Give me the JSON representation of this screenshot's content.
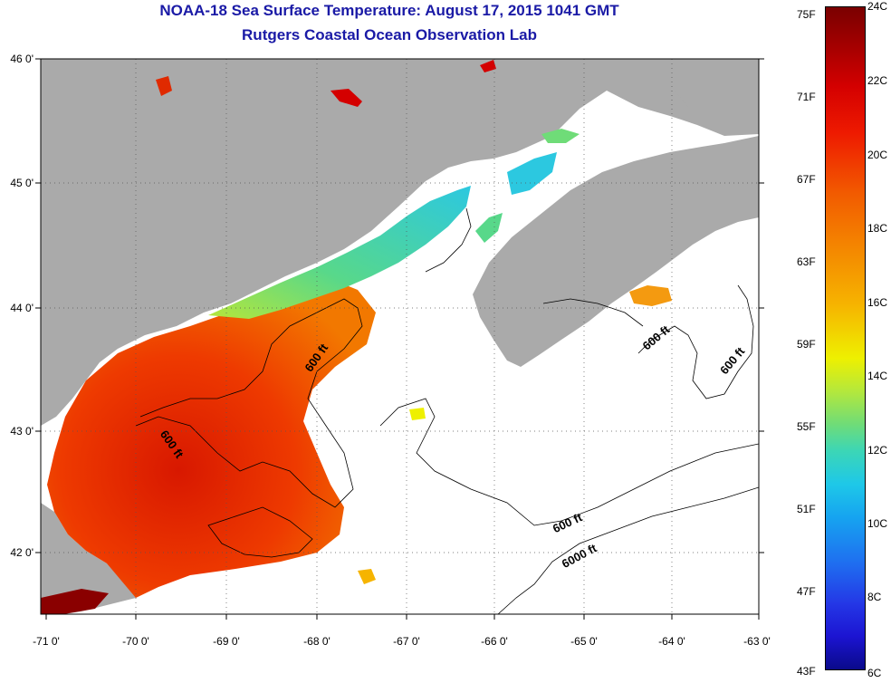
{
  "title": "NOAA-18 Sea Surface Temperature:  August 17, 2015 1041 GMT",
  "subtitle": "Rutgers Coastal Ocean Observation Lab",
  "x_ticks": [
    "-71 0'",
    "-70 0'",
    "-69 0'",
    "-68 0'",
    "-67 0'",
    "-66 0'",
    "-65 0'",
    "-64 0'",
    "-63 0'"
  ],
  "y_ticks": [
    "46 0'",
    "45 0'",
    "44 0'",
    "43 0'",
    "42 0'"
  ],
  "contour_labels": [
    "600 ft",
    "600 ft",
    "600 ft",
    "600 ft",
    "600 ft",
    "6000 ft"
  ],
  "colorbar": {
    "fahrenheit": [
      "75F",
      "71F",
      "67F",
      "63F",
      "59F",
      "55F",
      "51F",
      "47F",
      "43F"
    ],
    "celsius": [
      "24C",
      "22C",
      "20C",
      "18C",
      "16C",
      "14C",
      "12C",
      "10C",
      "8C",
      "6C"
    ]
  },
  "colors": {
    "title": "#1a1aa6",
    "land": "#aaaaaa",
    "warm": "#e02a00",
    "cool": "#30d0d0"
  }
}
